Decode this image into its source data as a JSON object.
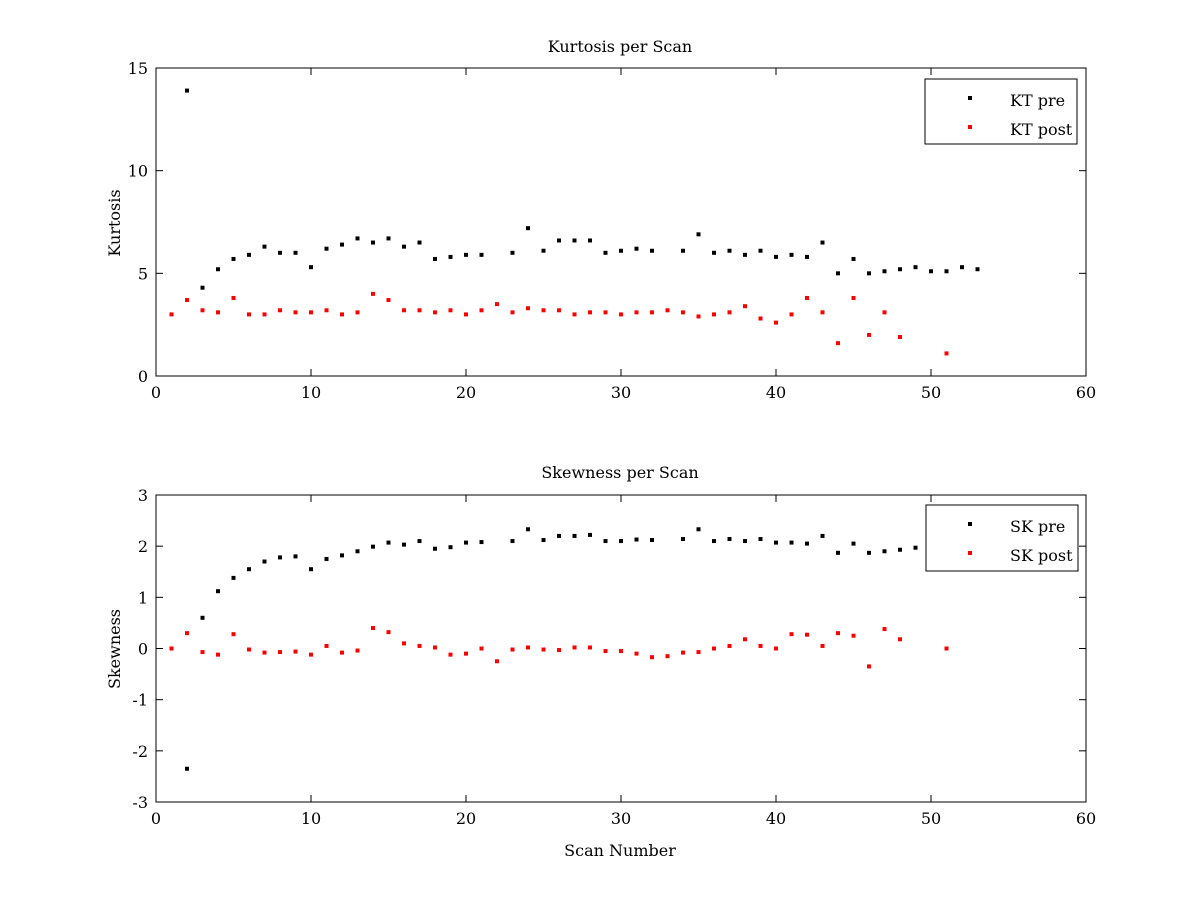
{
  "chart_data": [
    {
      "type": "scatter",
      "title": "Kurtosis per Scan",
      "xlabel": "",
      "ylabel": "Kurtosis",
      "xlim": [
        0,
        60
      ],
      "ylim": [
        0,
        15
      ],
      "xticks": [
        0,
        10,
        20,
        30,
        40,
        50,
        60
      ],
      "yticks": [
        0,
        5,
        10,
        15
      ],
      "grid": false,
      "legend_position": "top-right",
      "series": [
        {
          "name": "KT pre",
          "color": "#000000",
          "x": [
            2,
            3,
            4,
            5,
            6,
            7,
            8,
            9,
            10,
            11,
            12,
            13,
            14,
            15,
            16,
            17,
            18,
            19,
            20,
            21,
            23,
            24,
            25,
            26,
            27,
            28,
            29,
            30,
            31,
            32,
            34,
            35,
            36,
            37,
            38,
            39,
            40,
            41,
            42,
            43,
            44,
            45,
            46,
            47,
            48,
            49,
            50,
            51,
            52,
            53
          ],
          "y": [
            13.9,
            4.3,
            5.2,
            5.7,
            5.9,
            6.3,
            6.0,
            6.0,
            5.3,
            6.2,
            6.4,
            6.7,
            6.5,
            6.7,
            6.3,
            6.5,
            5.7,
            5.8,
            5.9,
            5.9,
            6.0,
            7.2,
            6.1,
            6.6,
            6.6,
            6.6,
            6.0,
            6.1,
            6.2,
            6.1,
            6.1,
            6.9,
            6.0,
            6.1,
            5.9,
            6.1,
            5.8,
            5.9,
            5.8,
            6.5,
            5.0,
            5.7,
            5.0,
            5.1,
            5.2,
            5.3,
            5.1,
            5.1,
            5.3,
            5.2
          ]
        },
        {
          "name": "KT post",
          "color": "#ff0000",
          "x": [
            1,
            2,
            3,
            4,
            5,
            6,
            7,
            8,
            9,
            10,
            11,
            12,
            13,
            14,
            15,
            16,
            17,
            18,
            19,
            20,
            21,
            22,
            23,
            24,
            25,
            26,
            27,
            28,
            29,
            30,
            31,
            32,
            33,
            34,
            35,
            36,
            37,
            38,
            39,
            40,
            41,
            42,
            43,
            44,
            45,
            46,
            47,
            48,
            51
          ],
          "y": [
            3.0,
            3.7,
            3.2,
            3.1,
            3.8,
            3.0,
            3.0,
            3.2,
            3.1,
            3.1,
            3.2,
            3.0,
            3.1,
            4.0,
            3.7,
            3.2,
            3.2,
            3.1,
            3.2,
            3.0,
            3.2,
            3.5,
            3.1,
            3.3,
            3.2,
            3.2,
            3.0,
            3.1,
            3.1,
            3.0,
            3.1,
            3.1,
            3.2,
            3.1,
            2.9,
            3.0,
            3.1,
            3.4,
            2.8,
            2.6,
            3.0,
            3.8,
            3.1,
            1.6,
            3.8,
            2.0,
            3.1,
            1.9,
            1.1
          ]
        }
      ]
    },
    {
      "type": "scatter",
      "title": "Skewness per Scan",
      "xlabel": "Scan Number",
      "ylabel": "Skewness",
      "xlim": [
        0,
        60
      ],
      "ylim": [
        -3,
        3
      ],
      "xticks": [
        0,
        10,
        20,
        30,
        40,
        50,
        60
      ],
      "yticks": [
        -3,
        -2,
        -1,
        0,
        1,
        2,
        3
      ],
      "grid": false,
      "legend_position": "top-right",
      "series": [
        {
          "name": "SK pre",
          "color": "#000000",
          "x": [
            2,
            3,
            4,
            5,
            6,
            7,
            8,
            9,
            10,
            11,
            12,
            13,
            14,
            15,
            16,
            17,
            18,
            19,
            20,
            21,
            23,
            24,
            25,
            26,
            27,
            28,
            29,
            30,
            31,
            32,
            34,
            35,
            36,
            37,
            38,
            39,
            40,
            41,
            42,
            43,
            44,
            45,
            46,
            47,
            48,
            49
          ],
          "y": [
            -2.35,
            0.6,
            1.12,
            1.38,
            1.55,
            1.7,
            1.78,
            1.8,
            1.55,
            1.75,
            1.82,
            1.9,
            1.99,
            2.07,
            2.03,
            2.1,
            1.95,
            1.98,
            2.07,
            2.08,
            2.1,
            2.33,
            2.12,
            2.2,
            2.2,
            2.22,
            2.1,
            2.1,
            2.13,
            2.12,
            2.14,
            2.33,
            2.1,
            2.14,
            2.1,
            2.14,
            2.07,
            2.07,
            2.05,
            2.2,
            1.87,
            2.05,
            1.87,
            1.9,
            1.93,
            1.97
          ]
        },
        {
          "name": "SK post",
          "color": "#ff0000",
          "x": [
            1,
            2,
            3,
            4,
            5,
            6,
            7,
            8,
            9,
            10,
            11,
            12,
            13,
            14,
            15,
            16,
            17,
            18,
            19,
            20,
            21,
            22,
            23,
            24,
            25,
            26,
            27,
            28,
            29,
            30,
            31,
            32,
            33,
            34,
            35,
            36,
            37,
            38,
            39,
            40,
            41,
            42,
            43,
            44,
            45,
            46,
            47,
            48,
            51
          ],
          "y": [
            0.0,
            0.3,
            -0.07,
            -0.12,
            0.28,
            -0.02,
            -0.08,
            -0.07,
            -0.06,
            -0.12,
            0.05,
            -0.08,
            -0.04,
            0.4,
            0.32,
            0.1,
            0.05,
            0.02,
            -0.12,
            -0.1,
            0.0,
            -0.25,
            -0.02,
            0.02,
            -0.02,
            -0.03,
            0.02,
            0.02,
            -0.05,
            -0.05,
            -0.1,
            -0.17,
            -0.15,
            -0.08,
            -0.07,
            0.0,
            0.05,
            0.18,
            0.05,
            0.0,
            0.28,
            0.27,
            0.05,
            0.3,
            0.25,
            -0.35,
            0.38,
            0.18,
            0.0
          ]
        }
      ]
    }
  ]
}
